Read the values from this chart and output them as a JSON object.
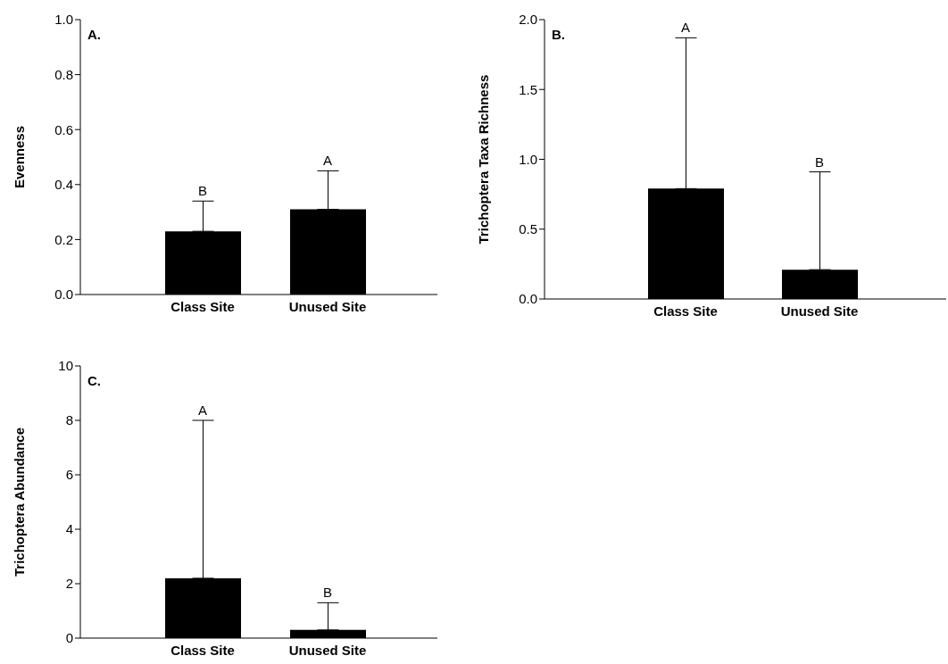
{
  "chart_data": [
    {
      "type": "bar",
      "title": "A.",
      "ylabel": "Evenness",
      "categories": [
        "Class Site",
        "Unused Site"
      ],
      "values": [
        0.23,
        0.31
      ],
      "color": "#000000",
      "errors": [
        [
          0.23,
          0.34
        ],
        [
          0.31,
          0.45
        ]
      ],
      "ylim": [
        0,
        1
      ],
      "yticks": [
        {
          "value": 0,
          "label": "0.0"
        },
        {
          "value": 0.2,
          "label": "0.2"
        },
        {
          "value": 0.4,
          "label": "0.4"
        },
        {
          "value": 0.6,
          "label": "0.6"
        },
        {
          "value": 0.8,
          "label": "0.8"
        },
        {
          "value": 1,
          "label": "1.0"
        }
      ],
      "grid": false,
      "legend": false,
      "annotations": [
        {
          "text": "B",
          "x": "Class Site",
          "y": 0.34
        },
        {
          "text": "A",
          "x": "Unused Site",
          "y": 0.45
        }
      ]
    },
    {
      "type": "bar",
      "title": "B.",
      "ylabel": "Trichoptera Taxa Richness",
      "categories": [
        "Class Site",
        "Unused Site"
      ],
      "values": [
        0.79,
        0.21
      ],
      "color": "#000000",
      "errors": [
        [
          0.79,
          1.87
        ],
        [
          0.21,
          0.91
        ]
      ],
      "ylim": [
        0,
        2
      ],
      "yticks": [
        {
          "value": 0,
          "label": "0.0"
        },
        {
          "value": 0.5,
          "label": "0.5"
        },
        {
          "value": 1,
          "label": "1.0"
        },
        {
          "value": 1.5,
          "label": "1.5"
        },
        {
          "value": 2,
          "label": "2.0"
        }
      ],
      "grid": false,
      "legend": false,
      "annotations": [
        {
          "text": "A",
          "x": "Class Site",
          "y": 1.87
        },
        {
          "text": "B",
          "x": "Unused Site",
          "y": 0.91
        }
      ]
    },
    {
      "type": "bar",
      "title": "C.",
      "ylabel": "Trichoptera Abundance",
      "categories": [
        "Class Site",
        "Unused Site"
      ],
      "values": [
        2.2,
        0.3
      ],
      "color": "#000000",
      "errors": [
        [
          2.2,
          8.0
        ],
        [
          0.3,
          1.3
        ]
      ],
      "ylim": [
        0,
        10
      ],
      "yticks": [
        0,
        2,
        4,
        6,
        8,
        10
      ],
      "grid": false,
      "legend": false,
      "annotations": [
        {
          "text": "A",
          "x": "Class Site",
          "y": 8.0
        },
        {
          "text": "B",
          "x": "Unused Site",
          "y": 1.3
        }
      ]
    }
  ]
}
